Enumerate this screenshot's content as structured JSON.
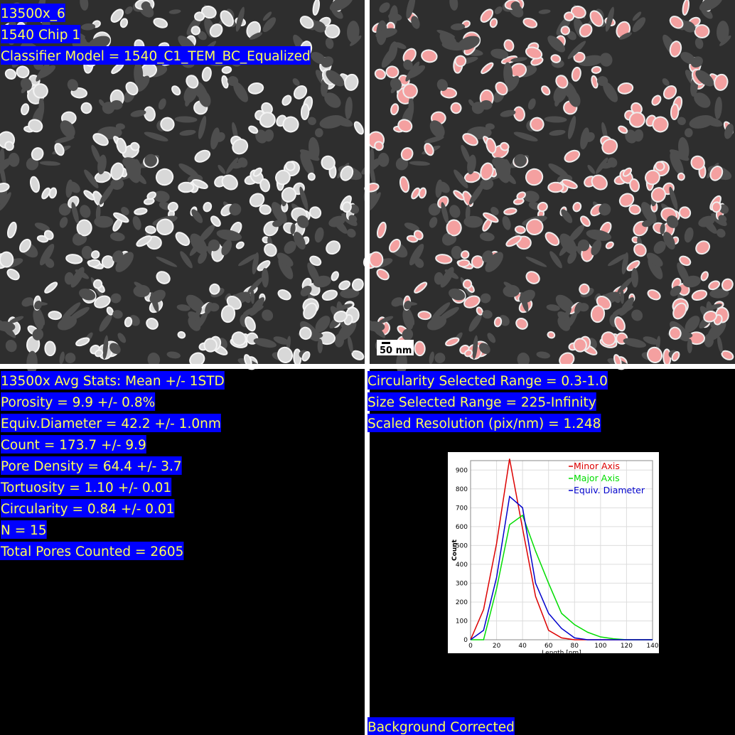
{
  "image_labels": [
    "13500x_6",
    "1540 Chip 1",
    "Classifier Model = 1540_C1_TEM_BC_Equalized"
  ],
  "scale_bar": "50 nm",
  "stats_left": [
    "13500x Avg Stats: Mean +/- 1STD",
    "Porosity = 9.9 +/- 0.8%",
    "Equiv.Diameter = 42.2 +/- 1.0nm",
    "Count = 173.7 +/- 9.9",
    "Pore Density = 64.4 +/- 3.7",
    "Tortuosity = 1.10 +/- 0.01",
    "Circularity = 0.84 +/- 0.01",
    "N = 15",
    "Total Pores Counted = 2605"
  ],
  "stats_right": [
    "Circularity Selected Range = 0.3-1.0",
    "Size Selected Range = 225-Infinity",
    "Scaled Resolution (pix/nm) = 1.248"
  ],
  "footer": "Background Corrected",
  "chart_data": {
    "type": "line",
    "x_label": "Length [nm]",
    "y_label": "Count",
    "x": [
      0,
      10,
      20,
      30,
      40,
      50,
      60,
      70,
      80,
      90,
      100,
      110,
      120,
      130,
      140
    ],
    "series": [
      {
        "name": "Minor Axis",
        "color": "#dd0000",
        "values": [
          0,
          160,
          510,
          960,
          590,
          230,
          50,
          10,
          0,
          0,
          0,
          0,
          0,
          0,
          0
        ]
      },
      {
        "name": "Major Axis",
        "color": "#00dd00",
        "values": [
          0,
          0,
          270,
          610,
          660,
          470,
          300,
          140,
          80,
          40,
          15,
          5,
          0,
          0,
          0
        ]
      },
      {
        "name": "Equiv. Diameter",
        "color": "#0000cc",
        "values": [
          0,
          50,
          330,
          760,
          700,
          300,
          140,
          60,
          10,
          0,
          0,
          0,
          0,
          0,
          0
        ]
      }
    ],
    "xlim": [
      0,
      140
    ],
    "xticks": [
      0,
      20,
      40,
      60,
      80,
      100,
      120,
      140
    ],
    "ylim": [
      0,
      950
    ],
    "yticks": [
      0,
      100,
      200,
      300,
      400,
      500,
      600,
      700,
      800,
      900
    ],
    "grid": true,
    "legend": "upper right"
  }
}
